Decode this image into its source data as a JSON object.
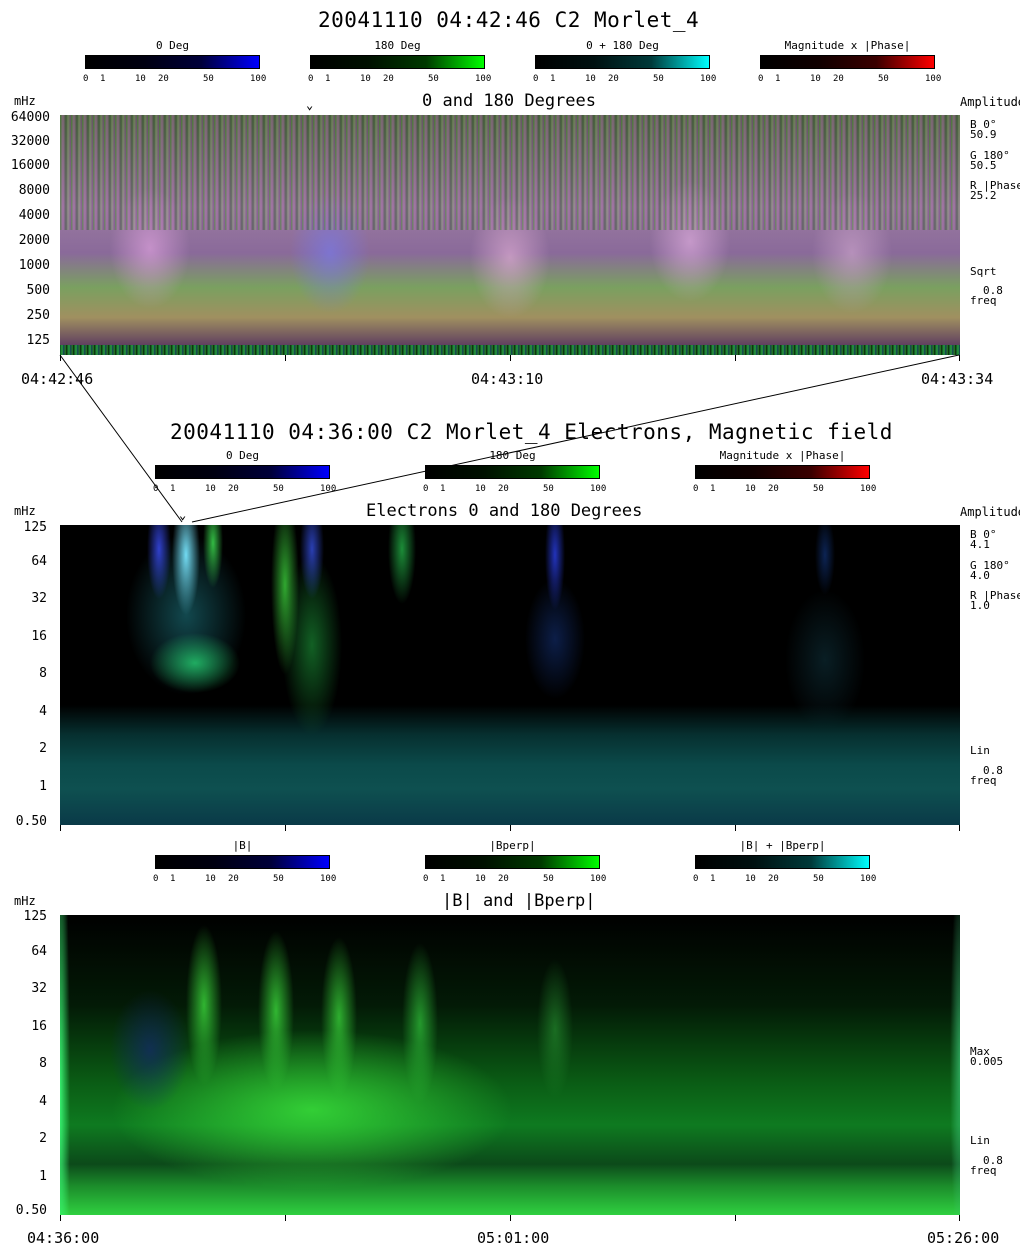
{
  "top": {
    "title": "20041110 04:42:46 C2 Morlet_4",
    "colorbars": [
      {
        "label": "0 Deg",
        "color": "#0000ff"
      },
      {
        "label": "180 Deg",
        "color": "#00ff00"
      },
      {
        "label": "0 + 180 Deg",
        "color": "#00ffff"
      },
      {
        "label": "Magnitude x |Phase|",
        "color": "#ff0000"
      }
    ],
    "panel_title": "0 and 180 Degrees",
    "unit": "mHz",
    "yticks": [
      "64000",
      "32000",
      "16000",
      "8000",
      "4000",
      "2000",
      "1000",
      "500",
      "250",
      "125"
    ],
    "side_header": "Amplitude",
    "side_lines": [
      "B 0°",
      "50.9",
      "G 180°",
      "50.5",
      "R |Phase|",
      "25.2"
    ],
    "scale_lines": [
      "Sqrt",
      "0.8",
      "freq"
    ],
    "times": [
      "04:42:46",
      "04:43:10",
      "04:43:34"
    ]
  },
  "middle": {
    "title": "20041110 04:36:00 C2 Morlet_4 Electrons, Magnetic field",
    "colorbars": [
      {
        "label": "0 Deg",
        "color": "#0000ff"
      },
      {
        "label": "180 Deg",
        "color": "#00ff00"
      },
      {
        "label": "Magnitude x |Phase|",
        "color": "#ff0000"
      }
    ],
    "panel_title": "Electrons    0 and 180 Degrees",
    "unit": "mHz",
    "yticks": [
      "125",
      "64",
      "32",
      "16",
      "8",
      "4",
      "2",
      "1",
      "0.50"
    ],
    "side_header": "Amplitude",
    "side_lines": [
      "B 0°",
      "4.1",
      "G 180°",
      "4.0",
      "R |Phase|",
      "1.0"
    ],
    "scale_lines": [
      "Lin",
      "0.8",
      "freq"
    ]
  },
  "bottom": {
    "colorbars": [
      {
        "label": "|B|",
        "color": "#0000ff"
      },
      {
        "label": "|Bperp|",
        "color": "#00ff00"
      },
      {
        "label": "|B| + |Bperp|",
        "color": "#00ffff"
      }
    ],
    "panel_title": "|B| and |Bperp|",
    "unit": "mHz",
    "yticks": [
      "125",
      "64",
      "32",
      "16",
      "8",
      "4",
      "2",
      "1",
      "0.50"
    ],
    "max_lines": [
      "Max",
      "0.005"
    ],
    "scale_lines": [
      "Lin",
      "0.8",
      "freq"
    ],
    "times": [
      "04:36:00",
      "05:01:00",
      "05:26:00"
    ]
  },
  "colorbar_ticks": [
    "0",
    "1",
    "10",
    "20",
    "50",
    "100"
  ],
  "chart_data": [
    {
      "type": "heatmap",
      "title": "0 and 180 Degrees",
      "ylabel": "mHz",
      "y_ticks": [
        64000,
        32000,
        16000,
        8000,
        4000,
        2000,
        1000,
        500,
        250,
        125
      ],
      "x_ticks": [
        "04:42:46",
        "04:43:10",
        "04:43:34"
      ],
      "amplitude": {
        "B 0°": 50.9,
        "G 180°": 50.5,
        "R |Phase|": 25.2
      },
      "scale": "Sqrt"
    },
    {
      "type": "heatmap",
      "title": "Electrons 0 and 180 Degrees",
      "ylabel": "mHz",
      "y_ticks": [
        125,
        64,
        32,
        16,
        8,
        4,
        2,
        1,
        0.5
      ],
      "amplitude": {
        "B 0°": 4.1,
        "G 180°": 4.0,
        "R |Phase|": 1.0
      },
      "scale": "Lin"
    },
    {
      "type": "heatmap",
      "title": "|B| and |Bperp|",
      "ylabel": "mHz",
      "y_ticks": [
        125,
        64,
        32,
        16,
        8,
        4,
        2,
        1,
        0.5
      ],
      "x_ticks": [
        "04:36:00",
        "05:01:00",
        "05:26:00"
      ],
      "max": 0.005,
      "scale": "Lin"
    }
  ]
}
